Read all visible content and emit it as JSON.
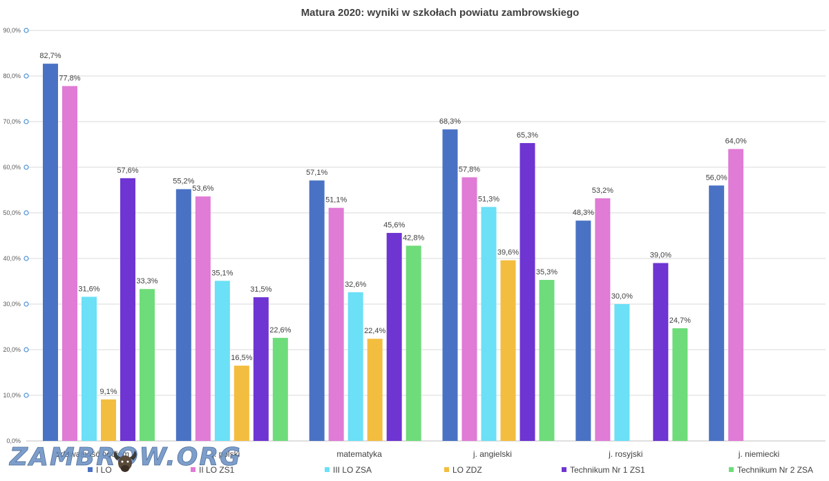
{
  "chart_data": {
    "type": "bar",
    "title": "Matura 2020: wyniki w szkołach powiatu zambrowskiego",
    "categories": [
      "zdawalność ogółem",
      "j. polski",
      "matematyka",
      "j. angielski",
      "j. rosyjski",
      "j. niemiecki"
    ],
    "y_ticks": [
      "0,0%",
      "10,0%",
      "20,0%",
      "30,0%",
      "40,0%",
      "50,0%",
      "60,0%",
      "70,0%",
      "80,0%",
      "90,0%"
    ],
    "ylim": [
      0,
      90
    ],
    "grid": true,
    "legend_position": "bottom",
    "series": [
      {
        "name": "I LO",
        "color": "#4a72c4",
        "values": [
          82.7,
          55.2,
          57.1,
          68.3,
          48.3,
          56.0
        ],
        "labels": [
          "82,7%",
          "55,2%",
          "57,1%",
          "68,3%",
          "48,3%",
          "56,0%"
        ]
      },
      {
        "name": "II LO ZS1",
        "color": "#e07bd6",
        "values": [
          77.8,
          53.6,
          51.1,
          57.8,
          53.2,
          64.0
        ],
        "labels": [
          "77,8%",
          "53,6%",
          "51,1%",
          "57,8%",
          "53,2%",
          "64,0%"
        ]
      },
      {
        "name": "III LO ZSA",
        "color": "#6be0f6",
        "values": [
          31.6,
          35.1,
          32.6,
          51.3,
          30.0,
          null
        ],
        "labels": [
          "31,6%",
          "35,1%",
          "32,6%",
          "51,3%",
          "30,0%",
          null
        ]
      },
      {
        "name": "LO ZDZ",
        "color": "#f3bd3f",
        "values": [
          9.1,
          16.5,
          22.4,
          39.6,
          null,
          null
        ],
        "labels": [
          "9,1%",
          "16,5%",
          "22,4%",
          "39,6%",
          null,
          null
        ]
      },
      {
        "name": "Technikum Nr 1 ZS1",
        "color": "#6e35d2",
        "values": [
          57.6,
          31.5,
          45.6,
          65.3,
          39.0,
          null
        ],
        "labels": [
          "57,6%",
          "31,5%",
          "45,6%",
          "65,3%",
          "39,0%",
          null
        ]
      },
      {
        "name": "Technikum Nr 2 ZSA",
        "color": "#6edc7a",
        "values": [
          33.3,
          22.6,
          42.8,
          35.3,
          24.7,
          null
        ],
        "labels": [
          "33,3%",
          "22,6%",
          "42,8%",
          "35,3%",
          "24,7%",
          null
        ]
      }
    ]
  },
  "watermark": {
    "text": "ZAMBROW.ORG",
    "icon": "bison-head-icon"
  }
}
